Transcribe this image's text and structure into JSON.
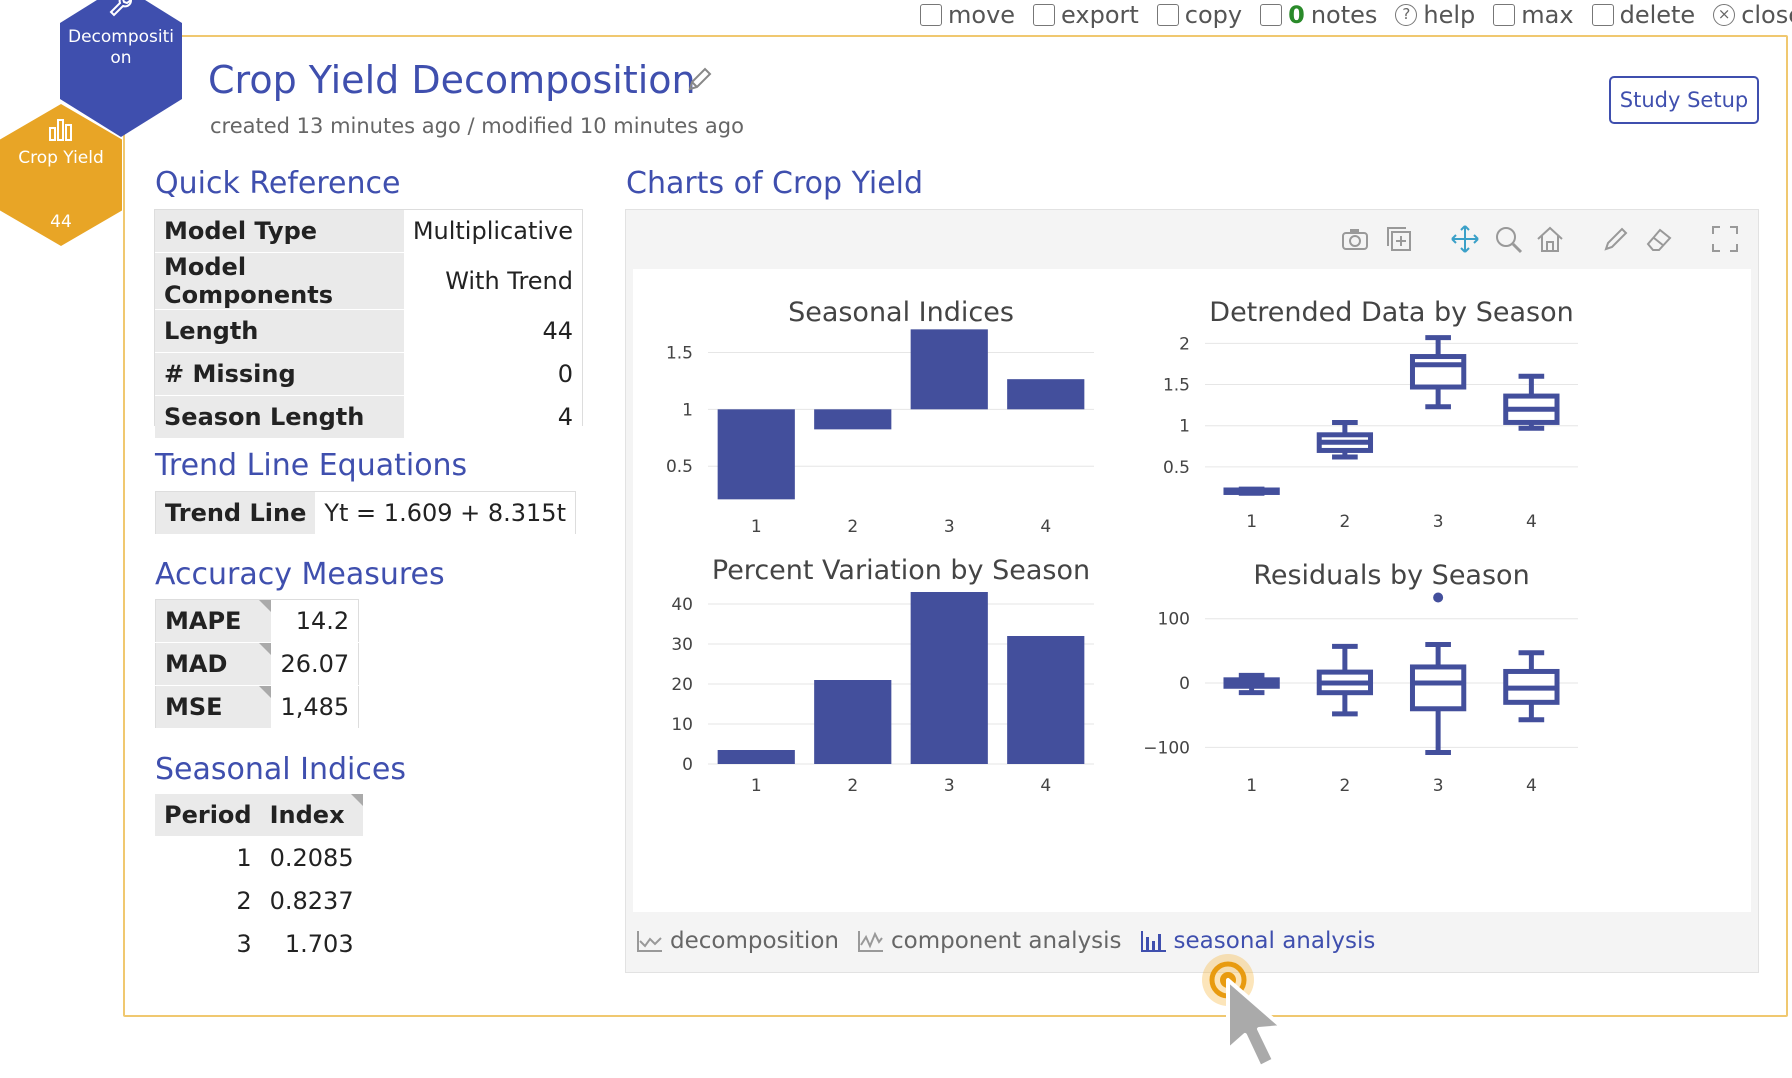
{
  "topbar": {
    "items": [
      {
        "icon": "move-icon",
        "label": "move"
      },
      {
        "icon": "export-icon",
        "label": "export"
      },
      {
        "icon": "copy-icon",
        "label": "copy"
      },
      {
        "icon": "notes-icon",
        "count": "0",
        "label": "notes"
      },
      {
        "icon": "help-icon",
        "label": "help"
      },
      {
        "icon": "max-icon",
        "label": "max"
      },
      {
        "icon": "delete-icon",
        "label": "delete"
      },
      {
        "icon": "close-icon",
        "label": "close"
      }
    ]
  },
  "badges": {
    "decomposition": {
      "line1": "Decompositi",
      "line2": "on",
      "icon": "wrench-icon",
      "color": "#3f4fae"
    },
    "crop": {
      "label": "Crop Yield",
      "count": "44",
      "icon": "bar-chart-icon",
      "color": "#e8a526"
    }
  },
  "header": {
    "title": "Crop Yield Decomposition",
    "subtitle": "created 13 minutes ago / modified 10 minutes ago",
    "study_setup": "Study Setup"
  },
  "quick_reference": {
    "heading": "Quick Reference",
    "rows": [
      {
        "k": "Model Type",
        "v": "Multiplicative"
      },
      {
        "k": "Model Components",
        "v": "With Trend"
      },
      {
        "k": "Length",
        "v": "44"
      },
      {
        "k": "# Missing",
        "v": "0"
      },
      {
        "k": "Season Length",
        "v": "4"
      }
    ]
  },
  "trend": {
    "heading": "Trend Line Equations",
    "label": "Trend Line",
    "equation": "Yt = 1.609 + 8.315t"
  },
  "accuracy": {
    "heading": "Accuracy Measures",
    "rows": [
      {
        "k": "MAPE",
        "v": "14.2"
      },
      {
        "k": "MAD",
        "v": "26.07"
      },
      {
        "k": "MSE",
        "v": "1,485"
      }
    ]
  },
  "seasonal_table": {
    "heading": "Seasonal Indices",
    "col_period": "Period",
    "col_index": "Index",
    "rows": [
      {
        "p": "1",
        "i": "0.2085"
      },
      {
        "p": "2",
        "i": "0.8237"
      },
      {
        "p": "3",
        "i": "1.703"
      }
    ]
  },
  "charts": {
    "heading": "Charts of Crop Yield",
    "tabs": [
      {
        "label": "decomposition",
        "active": false
      },
      {
        "label": "component analysis",
        "active": false
      },
      {
        "label": "seasonal analysis",
        "active": true
      }
    ]
  },
  "colors": {
    "accent": "#3f4fae",
    "bar": "#434f9c",
    "badge_orange": "#e8a526"
  },
  "chart_data": [
    {
      "type": "bar",
      "title": "Seasonal Indices",
      "categories": [
        "1",
        "2",
        "3",
        "4"
      ],
      "values": [
        0.2085,
        0.8237,
        1.703,
        1.265
      ],
      "base": 1,
      "ylim": [
        0.15,
        1.75
      ],
      "yticks": [
        0.5,
        1,
        1.5
      ],
      "ytick_labels": [
        "0.5",
        "1",
        "1.5"
      ]
    },
    {
      "type": "box",
      "title": "Detrended Data by Season",
      "categories": [
        "1",
        "2",
        "3",
        "4"
      ],
      "boxes": [
        {
          "min": 0.18,
          "q1": 0.19,
          "median": 0.2,
          "q3": 0.22,
          "max": 0.23
        },
        {
          "min": 0.62,
          "q1": 0.7,
          "median": 0.8,
          "q3": 0.89,
          "max": 1.04
        },
        {
          "min": 1.23,
          "q1": 1.47,
          "median": 1.74,
          "q3": 1.84,
          "max": 2.07
        },
        {
          "min": 0.97,
          "q1": 1.04,
          "median": 1.2,
          "q3": 1.36,
          "max": 1.6
        }
      ],
      "ylim": [
        0.05,
        2.15
      ],
      "yticks": [
        0.5,
        1,
        1.5,
        2
      ],
      "ytick_labels": [
        "0.5",
        "1",
        "1.5",
        "2"
      ]
    },
    {
      "type": "bar",
      "title": "Percent Variation by Season",
      "categories": [
        "1",
        "2",
        "3",
        "4"
      ],
      "values": [
        3.5,
        21,
        43,
        32
      ],
      "ylim": [
        0,
        43
      ],
      "yticks": [
        0,
        10,
        20,
        30,
        40
      ],
      "ytick_labels": [
        "0",
        "10",
        "20",
        "30",
        "40"
      ]
    },
    {
      "type": "box",
      "title": "Residuals by Season",
      "categories": [
        "1",
        "2",
        "3",
        "4"
      ],
      "boxes": [
        {
          "min": -15,
          "q1": -5,
          "median": 0,
          "q3": 5,
          "max": 12
        },
        {
          "min": -48,
          "q1": -15,
          "median": 0,
          "q3": 17,
          "max": 57
        },
        {
          "min": -108,
          "q1": -40,
          "median": 0,
          "q3": 25,
          "max": 60,
          "outliers": [
            133
          ]
        },
        {
          "min": -57,
          "q1": -30,
          "median": -8,
          "q3": 18,
          "max": 47
        }
      ],
      "ylim": [
        -115,
        140
      ],
      "yticks": [
        -100,
        0,
        100
      ],
      "ytick_labels": [
        "−100",
        "0",
        "100"
      ]
    }
  ]
}
